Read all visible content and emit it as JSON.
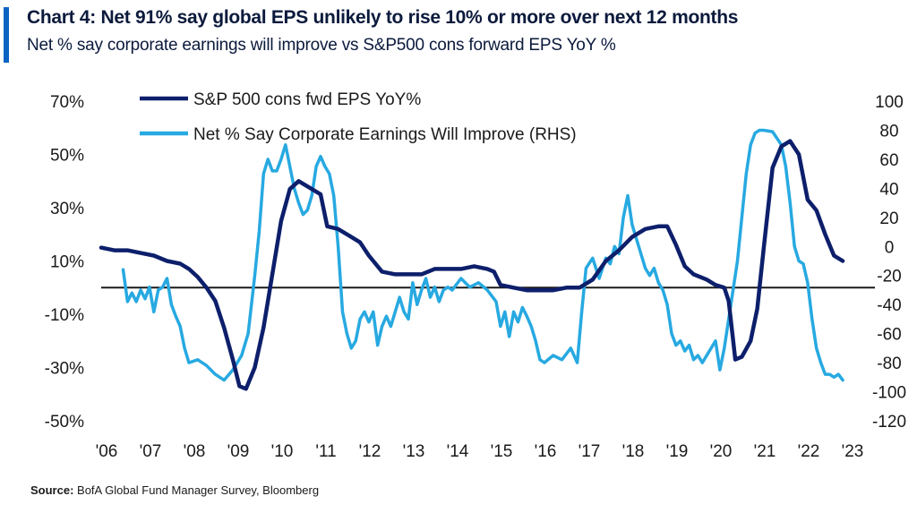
{
  "header": {
    "title": "Chart 4: Net 91% say global EPS unlikely to rise 10% or more over next 12 months",
    "subtitle": "Net % say corporate earnings will improve vs S&P500 cons forward EPS YoY %"
  },
  "source": {
    "label": "Source:",
    "text": "BofA Global Fund Manager Survey, Bloomberg"
  },
  "colors": {
    "dark_series": "#0d1f6b",
    "light_series": "#27a9e1",
    "accent": "#0b63c4"
  },
  "chart_data": {
    "type": "line",
    "title": "Chart 4: Net 91% say global EPS unlikely to rise 10% or more over next 12 months",
    "subtitle": "Net % say corporate earnings will improve vs S&P500 cons forward EPS YoY %",
    "x_ticks": [
      "'06",
      "'07",
      "'08",
      "'09",
      "'10",
      "'11",
      "'12",
      "'13",
      "'14",
      "'15",
      "'16",
      "'17",
      "'18",
      "'19",
      "'20",
      "'21",
      "'22",
      "'23"
    ],
    "xlim": [
      2006,
      2023
    ],
    "y_left": {
      "lim": [
        -50,
        70
      ],
      "ticks": [
        "70%",
        "50%",
        "30%",
        "10%",
        "-10%",
        "-30%",
        "-50%"
      ],
      "tick_values": [
        70,
        50,
        30,
        10,
        -10,
        -30,
        -50
      ]
    },
    "y_right": {
      "lim": [
        -120,
        100
      ],
      "ticks": [
        "100",
        "80",
        "60",
        "40",
        "20",
        "0",
        "-20",
        "-40",
        "-60",
        "-80",
        "-100",
        "-120"
      ],
      "tick_values": [
        100,
        80,
        60,
        40,
        20,
        0,
        -20,
        -40,
        -60,
        -80,
        -100,
        -120
      ]
    },
    "reference_line_left": 0,
    "legend_placement": "top-left",
    "grid": false,
    "series": [
      {
        "name": "S&P 500 cons fwd EPS YoY%",
        "axis": "left",
        "color": "#0d1f6b",
        "points": [
          [
            2006.0,
            15
          ],
          [
            2006.3,
            14
          ],
          [
            2006.6,
            14
          ],
          [
            2006.9,
            13
          ],
          [
            2007.2,
            12
          ],
          [
            2007.5,
            10
          ],
          [
            2007.8,
            9
          ],
          [
            2008.0,
            7
          ],
          [
            2008.2,
            4
          ],
          [
            2008.4,
            0
          ],
          [
            2008.6,
            -5
          ],
          [
            2008.8,
            -15
          ],
          [
            2009.0,
            -27
          ],
          [
            2009.15,
            -37
          ],
          [
            2009.3,
            -38
          ],
          [
            2009.5,
            -30
          ],
          [
            2009.7,
            -15
          ],
          [
            2009.9,
            5
          ],
          [
            2010.1,
            25
          ],
          [
            2010.3,
            37
          ],
          [
            2010.5,
            40
          ],
          [
            2010.7,
            38
          ],
          [
            2011.0,
            35
          ],
          [
            2011.15,
            23
          ],
          [
            2011.4,
            22
          ],
          [
            2011.7,
            19
          ],
          [
            2011.9,
            17
          ],
          [
            2012.1,
            12
          ],
          [
            2012.4,
            6
          ],
          [
            2012.7,
            5
          ],
          [
            2013.0,
            5
          ],
          [
            2013.3,
            5
          ],
          [
            2013.6,
            7
          ],
          [
            2013.9,
            7
          ],
          [
            2014.2,
            7
          ],
          [
            2014.5,
            8
          ],
          [
            2014.8,
            7
          ],
          [
            2014.95,
            6
          ],
          [
            2015.1,
            1
          ],
          [
            2015.4,
            0
          ],
          [
            2015.7,
            -1
          ],
          [
            2016.0,
            -1
          ],
          [
            2016.3,
            -1
          ],
          [
            2016.6,
            0
          ],
          [
            2016.9,
            0
          ],
          [
            2017.2,
            3
          ],
          [
            2017.5,
            10
          ],
          [
            2017.8,
            14
          ],
          [
            2018.1,
            19
          ],
          [
            2018.4,
            22
          ],
          [
            2018.7,
            23
          ],
          [
            2018.9,
            23
          ],
          [
            2019.1,
            16
          ],
          [
            2019.3,
            8
          ],
          [
            2019.5,
            5
          ],
          [
            2019.8,
            3
          ],
          [
            2020.0,
            1
          ],
          [
            2020.2,
            0
          ],
          [
            2020.3,
            -5
          ],
          [
            2020.45,
            -27
          ],
          [
            2020.6,
            -26
          ],
          [
            2020.8,
            -20
          ],
          [
            2020.95,
            -8
          ],
          [
            2021.1,
            15
          ],
          [
            2021.3,
            45
          ],
          [
            2021.5,
            53
          ],
          [
            2021.7,
            55
          ],
          [
            2021.9,
            50
          ],
          [
            2022.1,
            33
          ],
          [
            2022.3,
            29
          ],
          [
            2022.5,
            20
          ],
          [
            2022.7,
            12
          ],
          [
            2022.9,
            10
          ]
        ]
      },
      {
        "name": "Net % Say Corporate Earnings Will Improve (RHS)",
        "axis": "right",
        "color": "#27a9e1",
        "points": [
          [
            2006.5,
            -16
          ],
          [
            2006.6,
            -38
          ],
          [
            2006.7,
            -32
          ],
          [
            2006.8,
            -38
          ],
          [
            2006.9,
            -30
          ],
          [
            2007.0,
            -36
          ],
          [
            2007.1,
            -28
          ],
          [
            2007.2,
            -45
          ],
          [
            2007.3,
            -30
          ],
          [
            2007.4,
            -28
          ],
          [
            2007.5,
            -22
          ],
          [
            2007.6,
            -40
          ],
          [
            2007.7,
            -48
          ],
          [
            2007.8,
            -55
          ],
          [
            2007.9,
            -70
          ],
          [
            2008.0,
            -80
          ],
          [
            2008.2,
            -78
          ],
          [
            2008.4,
            -82
          ],
          [
            2008.6,
            -88
          ],
          [
            2008.8,
            -92
          ],
          [
            2009.0,
            -85
          ],
          [
            2009.1,
            -80
          ],
          [
            2009.2,
            -75
          ],
          [
            2009.35,
            -60
          ],
          [
            2009.5,
            -20
          ],
          [
            2009.6,
            10
          ],
          [
            2009.7,
            50
          ],
          [
            2009.8,
            60
          ],
          [
            2009.9,
            52
          ],
          [
            2010.0,
            52
          ],
          [
            2010.1,
            60
          ],
          [
            2010.2,
            70
          ],
          [
            2010.3,
            55
          ],
          [
            2010.4,
            40
          ],
          [
            2010.5,
            30
          ],
          [
            2010.6,
            22
          ],
          [
            2010.7,
            25
          ],
          [
            2010.8,
            35
          ],
          [
            2010.9,
            55
          ],
          [
            2011.0,
            62
          ],
          [
            2011.1,
            55
          ],
          [
            2011.2,
            50
          ],
          [
            2011.3,
            35
          ],
          [
            2011.4,
            0
          ],
          [
            2011.5,
            -45
          ],
          [
            2011.6,
            -60
          ],
          [
            2011.7,
            -70
          ],
          [
            2011.8,
            -65
          ],
          [
            2011.9,
            -50
          ],
          [
            2012.0,
            -45
          ],
          [
            2012.1,
            -52
          ],
          [
            2012.2,
            -45
          ],
          [
            2012.3,
            -68
          ],
          [
            2012.4,
            -55
          ],
          [
            2012.5,
            -48
          ],
          [
            2012.6,
            -55
          ],
          [
            2012.7,
            -45
          ],
          [
            2012.8,
            -35
          ],
          [
            2012.9,
            -45
          ],
          [
            2013.0,
            -50
          ],
          [
            2013.1,
            -25
          ],
          [
            2013.2,
            -40
          ],
          [
            2013.3,
            -30
          ],
          [
            2013.4,
            -22
          ],
          [
            2013.5,
            -35
          ],
          [
            2013.6,
            -28
          ],
          [
            2013.7,
            -38
          ],
          [
            2013.8,
            -30
          ],
          [
            2013.9,
            -28
          ],
          [
            2014.0,
            -30
          ],
          [
            2014.2,
            -22
          ],
          [
            2014.4,
            -28
          ],
          [
            2014.6,
            -25
          ],
          [
            2014.8,
            -30
          ],
          [
            2015.0,
            -38
          ],
          [
            2015.1,
            -55
          ],
          [
            2015.2,
            -45
          ],
          [
            2015.3,
            -62
          ],
          [
            2015.4,
            -45
          ],
          [
            2015.5,
            -52
          ],
          [
            2015.6,
            -42
          ],
          [
            2015.7,
            -48
          ],
          [
            2015.8,
            -55
          ],
          [
            2015.9,
            -65
          ],
          [
            2016.0,
            -78
          ],
          [
            2016.1,
            -80
          ],
          [
            2016.3,
            -75
          ],
          [
            2016.5,
            -78
          ],
          [
            2016.7,
            -70
          ],
          [
            2016.85,
            -80
          ],
          [
            2016.95,
            -45
          ],
          [
            2017.05,
            -15
          ],
          [
            2017.2,
            -8
          ],
          [
            2017.35,
            -22
          ],
          [
            2017.5,
            -8
          ],
          [
            2017.6,
            -12
          ],
          [
            2017.7,
            0
          ],
          [
            2017.8,
            -5
          ],
          [
            2017.9,
            20
          ],
          [
            2018.0,
            35
          ],
          [
            2018.1,
            15
          ],
          [
            2018.2,
            5
          ],
          [
            2018.3,
            -5
          ],
          [
            2018.4,
            -15
          ],
          [
            2018.5,
            -20
          ],
          [
            2018.6,
            -15
          ],
          [
            2018.7,
            -25
          ],
          [
            2018.8,
            -30
          ],
          [
            2018.9,
            -40
          ],
          [
            2019.0,
            -60
          ],
          [
            2019.1,
            -68
          ],
          [
            2019.2,
            -65
          ],
          [
            2019.3,
            -72
          ],
          [
            2019.4,
            -68
          ],
          [
            2019.5,
            -78
          ],
          [
            2019.6,
            -75
          ],
          [
            2019.7,
            -80
          ],
          [
            2019.8,
            -75
          ],
          [
            2019.9,
            -70
          ],
          [
            2020.0,
            -65
          ],
          [
            2020.1,
            -85
          ],
          [
            2020.2,
            -70
          ],
          [
            2020.3,
            -50
          ],
          [
            2020.4,
            -30
          ],
          [
            2020.5,
            -10
          ],
          [
            2020.6,
            20
          ],
          [
            2020.7,
            50
          ],
          [
            2020.8,
            70
          ],
          [
            2020.9,
            78
          ],
          [
            2021.0,
            80
          ],
          [
            2021.1,
            80
          ],
          [
            2021.3,
            79
          ],
          [
            2021.5,
            70
          ],
          [
            2021.6,
            55
          ],
          [
            2021.7,
            30
          ],
          [
            2021.8,
            0
          ],
          [
            2021.9,
            -10
          ],
          [
            2022.0,
            -12
          ],
          [
            2022.1,
            -25
          ],
          [
            2022.2,
            -50
          ],
          [
            2022.3,
            -70
          ],
          [
            2022.4,
            -80
          ],
          [
            2022.5,
            -88
          ],
          [
            2022.6,
            -88
          ],
          [
            2022.7,
            -90
          ],
          [
            2022.8,
            -88
          ],
          [
            2022.9,
            -92
          ]
        ]
      }
    ]
  }
}
